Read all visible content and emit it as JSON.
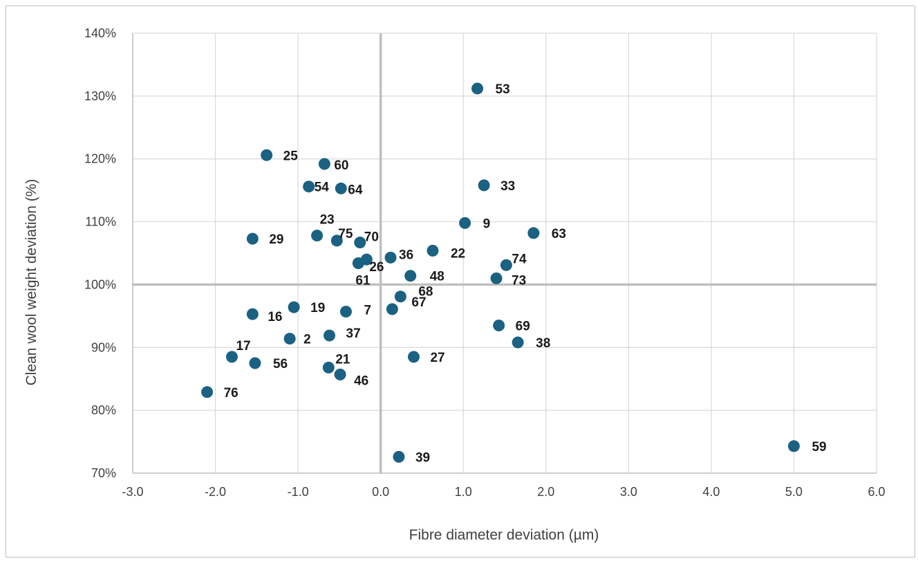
{
  "chart_data": {
    "type": "scatter",
    "title": "",
    "xlabel": "Fibre diameter deviation (µm)",
    "ylabel": "Clean wool weight deviation (%)",
    "xlim": [
      -3.0,
      6.0
    ],
    "ylim": [
      70,
      140
    ],
    "x_ticks": [
      -3.0,
      -2.0,
      -1.0,
      0.0,
      1.0,
      2.0,
      3.0,
      4.0,
      5.0,
      6.0
    ],
    "x_tick_labels": [
      "-3.0",
      "-2.0",
      "-1.0",
      "0.0",
      "1.0",
      "2.0",
      "3.0",
      "4.0",
      "5.0",
      "6.0"
    ],
    "y_ticks": [
      70,
      80,
      90,
      100,
      110,
      120,
      130,
      140
    ],
    "y_tick_labels": [
      "70%",
      "80%",
      "90%",
      "100%",
      "110%",
      "120%",
      "130%",
      "140%"
    ],
    "grid": true,
    "reference_lines": {
      "x": 0.0,
      "y": 100
    },
    "marker_color": "#1b6182",
    "grid_color": "#d9d9d9",
    "reference_line_color": "#bfbfbf",
    "points": [
      {
        "label": "53",
        "x": 1.17,
        "y": 131.2
      },
      {
        "label": "25",
        "x": -1.38,
        "y": 120.6
      },
      {
        "label": "60",
        "x": -0.68,
        "y": 119.2
      },
      {
        "label": "54",
        "x": -0.87,
        "y": 115.6
      },
      {
        "label": "64",
        "x": -0.48,
        "y": 115.3
      },
      {
        "label": "33",
        "x": 1.25,
        "y": 115.8
      },
      {
        "label": "9",
        "x": 1.02,
        "y": 109.8
      },
      {
        "label": "63",
        "x": 1.85,
        "y": 108.2
      },
      {
        "label": "29",
        "x": -1.55,
        "y": 107.3
      },
      {
        "label": "23",
        "x": -0.77,
        "y": 107.8
      },
      {
        "label": "75",
        "x": -0.53,
        "y": 107.0
      },
      {
        "label": "70",
        "x": -0.25,
        "y": 106.7
      },
      {
        "label": "36",
        "x": 0.12,
        "y": 104.3
      },
      {
        "label": "22",
        "x": 0.63,
        "y": 105.4
      },
      {
        "label": "26",
        "x": -0.17,
        "y": 104.0
      },
      {
        "label": "61",
        "x": -0.27,
        "y": 103.4
      },
      {
        "label": "74",
        "x": 1.52,
        "y": 103.1
      },
      {
        "label": "48",
        "x": 0.36,
        "y": 101.4
      },
      {
        "label": "73",
        "x": 1.4,
        "y": 101.0
      },
      {
        "label": "68",
        "x": 0.24,
        "y": 98.1
      },
      {
        "label": "19",
        "x": -1.05,
        "y": 96.4
      },
      {
        "label": "16",
        "x": -1.55,
        "y": 95.3
      },
      {
        "label": "7",
        "x": -0.42,
        "y": 95.7
      },
      {
        "label": "67",
        "x": 0.14,
        "y": 96.1
      },
      {
        "label": "69",
        "x": 1.43,
        "y": 93.5
      },
      {
        "label": "2",
        "x": -1.1,
        "y": 91.4
      },
      {
        "label": "37",
        "x": -0.62,
        "y": 91.9
      },
      {
        "label": "38",
        "x": 1.66,
        "y": 90.8
      },
      {
        "label": "17",
        "x": -1.8,
        "y": 88.5
      },
      {
        "label": "56",
        "x": -1.52,
        "y": 87.5
      },
      {
        "label": "27",
        "x": 0.4,
        "y": 88.5
      },
      {
        "label": "21",
        "x": -0.63,
        "y": 86.8
      },
      {
        "label": "46",
        "x": -0.49,
        "y": 85.7
      },
      {
        "label": "76",
        "x": -2.1,
        "y": 82.9
      },
      {
        "label": "59",
        "x": 5.0,
        "y": 74.3
      },
      {
        "label": "39",
        "x": 0.22,
        "y": 72.6
      }
    ]
  }
}
